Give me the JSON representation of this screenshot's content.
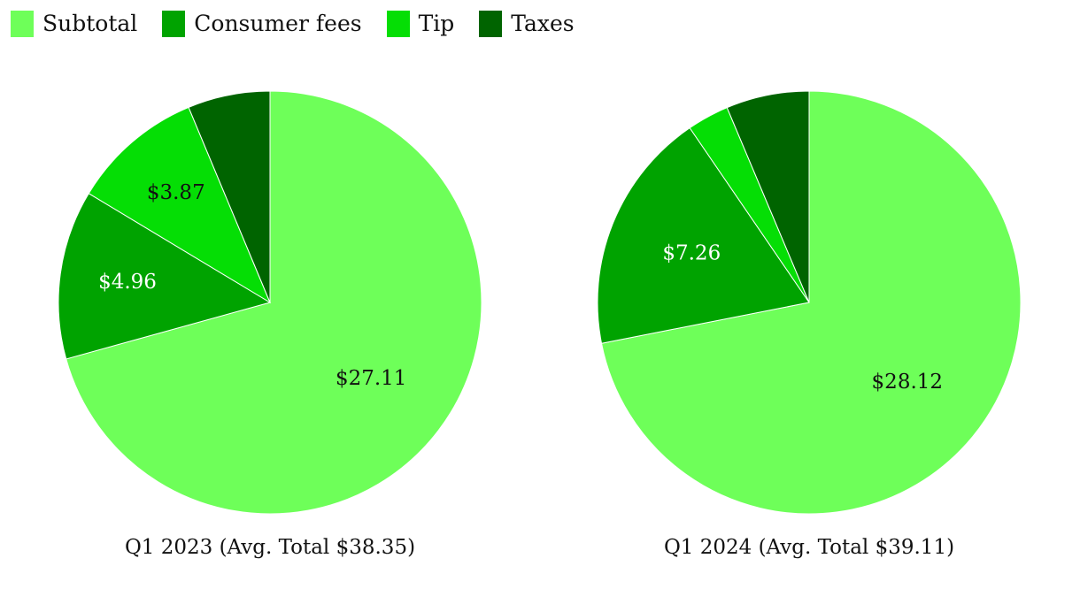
{
  "legend": [
    {
      "label": "Subtotal",
      "color": "#6EFF59"
    },
    {
      "label": "Consumer fees",
      "color": "#00A300"
    },
    {
      "label": "Tip",
      "color": "#05DE05"
    },
    {
      "label": "Taxes",
      "color": "#006400"
    }
  ],
  "chart_data": [
    {
      "type": "pie",
      "title": "Q1 2023 (Avg. Total $38.35)",
      "legend_position": "top-left",
      "slices": [
        {
          "name": "Subtotal",
          "value": 27.11,
          "label": "$27.11",
          "color": "#6EFF59",
          "label_color": "#111111"
        },
        {
          "name": "Consumer fees",
          "value": 4.96,
          "label": "$4.96",
          "color": "#00A300",
          "label_color": "#ffffff"
        },
        {
          "name": "Tip",
          "value": 3.87,
          "label": "$3.87",
          "color": "#05DE05",
          "label_color": "#111111"
        },
        {
          "name": "Taxes",
          "value": 2.41,
          "label": "",
          "color": "#006400",
          "label_color": "#ffffff"
        }
      ]
    },
    {
      "type": "pie",
      "title": "Q1 2024 (Avg. Total $39.11)",
      "legend_position": "top-left",
      "slices": [
        {
          "name": "Subtotal",
          "value": 28.12,
          "label": "$28.12",
          "color": "#6EFF59",
          "label_color": "#111111"
        },
        {
          "name": "Consumer fees",
          "value": 7.26,
          "label": "$7.26",
          "color": "#00A300",
          "label_color": "#ffffff"
        },
        {
          "name": "Tip",
          "value": 1.25,
          "label": "",
          "color": "#05DE05",
          "label_color": "#111111"
        },
        {
          "name": "Taxes",
          "value": 2.48,
          "label": "",
          "color": "#006400",
          "label_color": "#ffffff"
        }
      ]
    }
  ]
}
